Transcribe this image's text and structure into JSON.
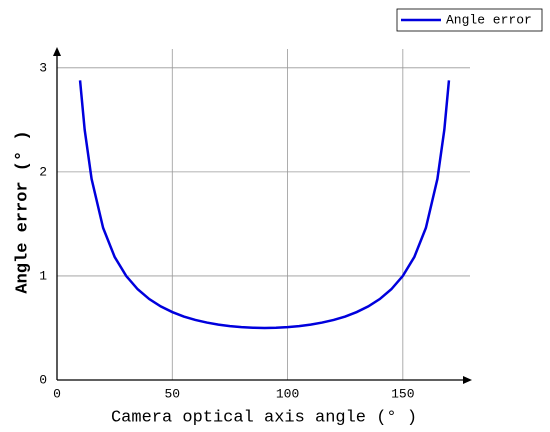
{
  "chart_data": {
    "type": "line",
    "x_label": "Camera optical axis angle (° )",
    "y_label": "Angle error (° )",
    "x": [
      10,
      12,
      15,
      20,
      25,
      30,
      35,
      40,
      45,
      50,
      55,
      60,
      65,
      70,
      75,
      80,
      85,
      90,
      95,
      100,
      105,
      110,
      115,
      120,
      125,
      130,
      135,
      140,
      145,
      150,
      155,
      160,
      165,
      168,
      170
    ],
    "series": [
      {
        "name": "Angle error",
        "color": "#0000dd",
        "values": [
          2.879,
          2.405,
          1.932,
          1.462,
          1.183,
          1.0,
          0.872,
          0.778,
          0.707,
          0.653,
          0.61,
          0.577,
          0.552,
          0.532,
          0.518,
          0.508,
          0.502,
          0.5,
          0.502,
          0.508,
          0.518,
          0.532,
          0.552,
          0.577,
          0.61,
          0.653,
          0.707,
          0.778,
          0.872,
          1.0,
          1.183,
          1.462,
          1.932,
          2.405,
          2.879
        ]
      }
    ],
    "xlim": [
      0,
      180
    ],
    "ylim": [
      0,
      3.2
    ],
    "xticks": [
      0,
      50,
      100,
      150
    ],
    "yticks": [
      0,
      1,
      2,
      3
    ],
    "grid": true,
    "legend": "top-right"
  }
}
